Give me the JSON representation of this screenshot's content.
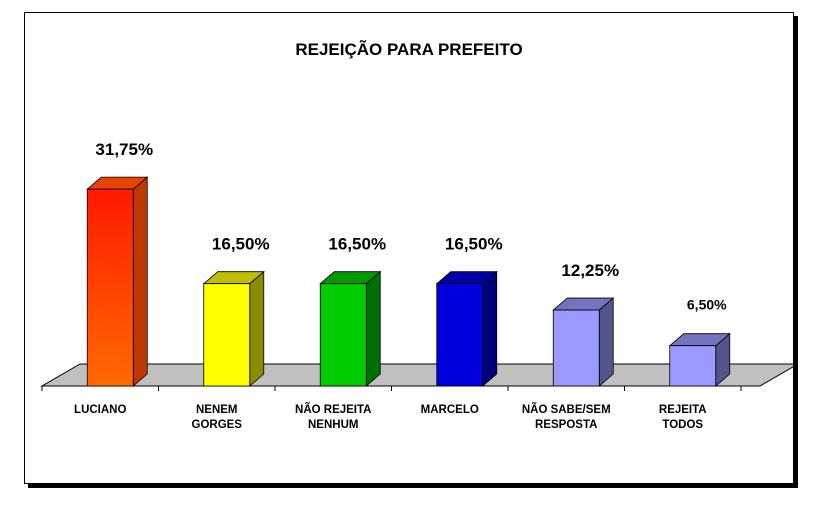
{
  "chart_data": {
    "type": "bar",
    "title": "REJEIÇÃO PARA PREFEITO",
    "categories": [
      [
        "LUCIANO"
      ],
      [
        "NENEM",
        "GORGES"
      ],
      [
        "NÃO REJEITA",
        "NENHUM"
      ],
      [
        "MARCELO"
      ],
      [
        "NÃO SABE/SEM",
        "RESPOSTA"
      ],
      [
        "REJEITA",
        "TODOS"
      ]
    ],
    "values": [
      31.75,
      16.5,
      16.5,
      16.5,
      12.25,
      6.5
    ],
    "value_labels": [
      "31,75%",
      "16,50%",
      "16,50%",
      "16,50%",
      "12,25%",
      "6,50%"
    ],
    "colors": [
      "#ff4a00",
      "#ffff00",
      "#00cc00",
      "#0000dd",
      "#9999ff",
      "#9999ff"
    ],
    "floor_color": "#c0c0c0",
    "legend": "none",
    "grid": false
  }
}
